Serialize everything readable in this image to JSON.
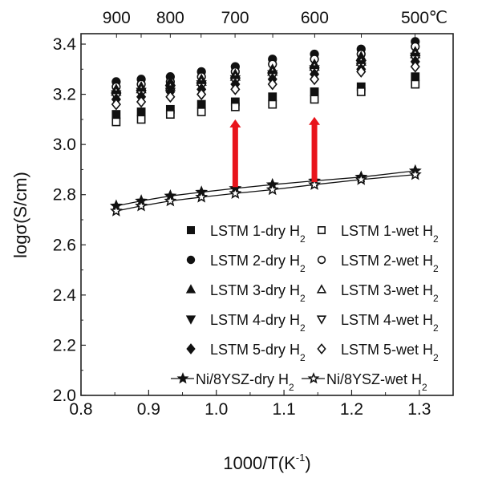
{
  "chart_data": {
    "type": "scatter",
    "title": "",
    "xlabel": "1000/T(K",
    "xlabel_sup": "-1",
    "xlabel_close": ")",
    "ylabel": "logσ(S/cm)",
    "xlim": [
      0.8,
      1.35
    ],
    "ylim": [
      2.0,
      3.4
    ],
    "grid": false,
    "legend_placement": "bottom-right",
    "x_ticks": [
      {
        "value": 0.8,
        "label": "0.8"
      },
      {
        "value": 0.9,
        "label": "0.9"
      },
      {
        "value": 1.0,
        "label": "1.0"
      },
      {
        "value": 1.1,
        "label": "1.1"
      },
      {
        "value": 1.2,
        "label": "1.2"
      },
      {
        "value": 1.3,
        "label": "1.3"
      }
    ],
    "y_ticks": [
      {
        "value": 2.0,
        "label": "2.0"
      },
      {
        "value": 2.2,
        "label": "2.2"
      },
      {
        "value": 2.4,
        "label": "2.4"
      },
      {
        "value": 2.6,
        "label": "2.6"
      },
      {
        "value": 2.8,
        "label": "2.8"
      },
      {
        "value": 3.0,
        "label": "3.0"
      },
      {
        "value": 3.2,
        "label": "3.2"
      },
      {
        "value": 3.4,
        "label": "3.4"
      }
    ],
    "top_axis": {
      "unit": "℃",
      "ticks": [
        {
          "value": 0.8525,
          "label": "900"
        },
        {
          "value": 0.8889,
          "label": ""
        },
        {
          "value": 0.932,
          "label": "800"
        },
        {
          "value": 0.9775,
          "label": ""
        },
        {
          "value": 1.0277,
          "label": "700"
        },
        {
          "value": 1.0834,
          "label": ""
        },
        {
          "value": 1.1454,
          "label": "600"
        },
        {
          "value": 1.2143,
          "label": ""
        },
        {
          "value": 1.2937,
          "label": "500"
        }
      ]
    },
    "x": [
      0.852,
      0.889,
      0.932,
      0.978,
      1.028,
      1.083,
      1.145,
      1.214,
      1.294
    ],
    "series": [
      {
        "name": "LSTM 1-dry H",
        "sub": "2",
        "marker": "square",
        "filled": true,
        "values": [
          3.12,
          3.13,
          3.14,
          3.16,
          3.17,
          3.19,
          3.21,
          3.23,
          3.27
        ]
      },
      {
        "name": "LSTM 1-wet H",
        "sub": "2",
        "marker": "square",
        "filled": false,
        "values": [
          3.09,
          3.1,
          3.12,
          3.13,
          3.15,
          3.16,
          3.18,
          3.21,
          3.24
        ]
      },
      {
        "name": "LSTM 2-dry H",
        "sub": "2",
        "marker": "circle",
        "filled": true,
        "values": [
          3.25,
          3.26,
          3.27,
          3.29,
          3.31,
          3.34,
          3.36,
          3.38,
          3.41
        ]
      },
      {
        "name": "LSTM 2-wet H",
        "sub": "2",
        "marker": "circle",
        "filled": false,
        "values": [
          3.23,
          3.24,
          3.25,
          3.27,
          3.29,
          3.32,
          3.34,
          3.36,
          3.39
        ]
      },
      {
        "name": "LSTM 3-dry H",
        "sub": "2",
        "marker": "triangle-up",
        "filled": true,
        "values": [
          3.22,
          3.23,
          3.25,
          3.26,
          3.28,
          3.3,
          3.32,
          3.35,
          3.37
        ]
      },
      {
        "name": "LSTM 3-wet H",
        "sub": "2",
        "marker": "triangle-up",
        "filled": false,
        "values": [
          3.21,
          3.22,
          3.23,
          3.25,
          3.27,
          3.29,
          3.31,
          3.33,
          3.36
        ]
      },
      {
        "name": "LSTM 4-dry H",
        "sub": "2",
        "marker": "triangle-down",
        "filled": true,
        "values": [
          3.2,
          3.21,
          3.22,
          3.24,
          3.26,
          3.28,
          3.3,
          3.32,
          3.35
        ]
      },
      {
        "name": "LSTM 4-wet H",
        "sub": "2",
        "marker": "triangle-down",
        "filled": false,
        "values": [
          3.19,
          3.2,
          3.21,
          3.23,
          3.25,
          3.27,
          3.29,
          3.31,
          3.34
        ]
      },
      {
        "name": "LSTM 5-dry H",
        "sub": "2",
        "marker": "diamond",
        "filled": true,
        "values": [
          3.18,
          3.19,
          3.21,
          3.22,
          3.24,
          3.26,
          3.28,
          3.3,
          3.33
        ]
      },
      {
        "name": "LSTM 5-wet H",
        "sub": "2",
        "marker": "diamond",
        "filled": false,
        "values": [
          3.16,
          3.17,
          3.19,
          3.2,
          3.22,
          3.24,
          3.26,
          3.29,
          3.31
        ]
      },
      {
        "name": "Ni/8YSZ-dry H",
        "sub": "2",
        "marker": "star",
        "filled": true,
        "line": true,
        "values": [
          2.755,
          2.775,
          2.795,
          2.81,
          2.825,
          2.84,
          2.855,
          2.87,
          2.895
        ]
      },
      {
        "name": "Ni/8YSZ-wet H",
        "sub": "2",
        "marker": "star",
        "filled": false,
        "line": true,
        "values": [
          2.735,
          2.755,
          2.775,
          2.79,
          2.805,
          2.82,
          2.84,
          2.86,
          2.88
        ]
      }
    ],
    "annotations": [
      {
        "type": "arrow",
        "color": "#e8141b",
        "x": 1.028,
        "y_from": 2.83,
        "y_to": 3.1
      },
      {
        "type": "arrow",
        "color": "#e8141b",
        "x": 1.145,
        "y_from": 2.85,
        "y_to": 3.11
      }
    ]
  }
}
